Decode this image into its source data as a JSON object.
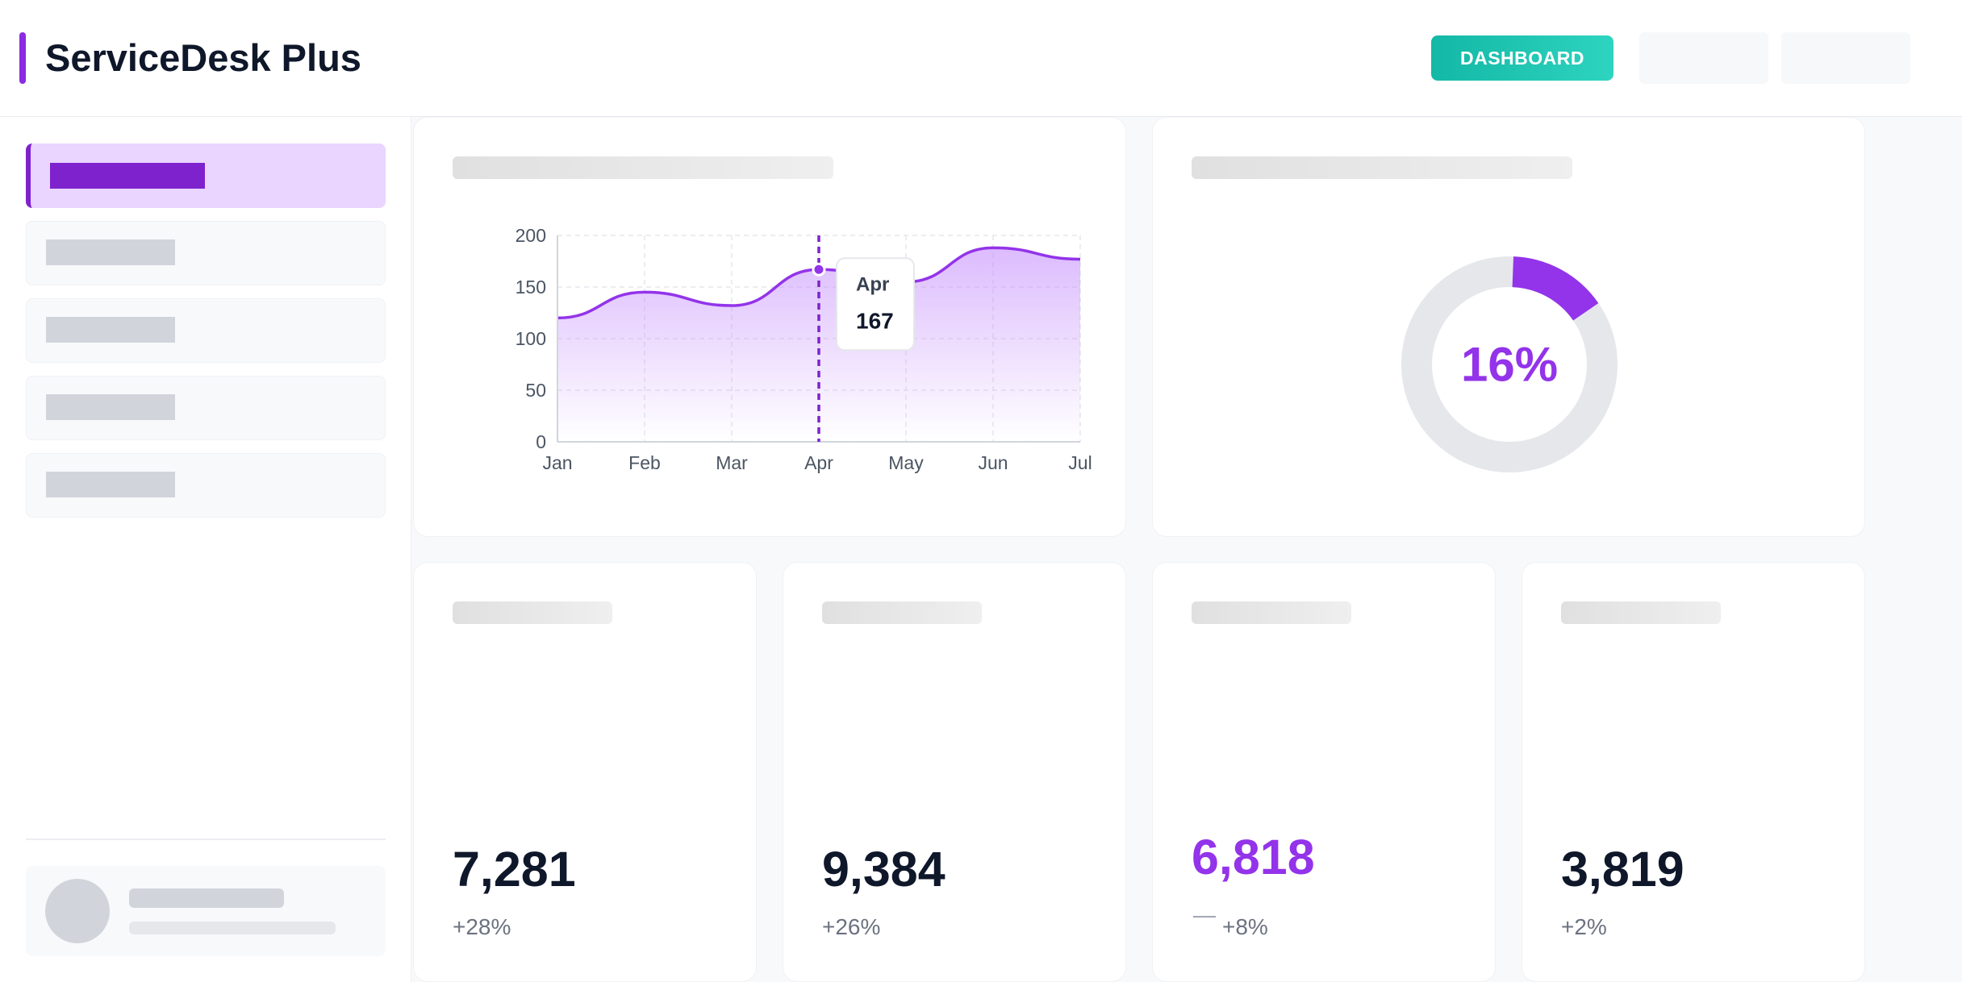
{
  "header": {
    "app_title": "ServiceDesk Plus",
    "dashboard_label": "DASHBOARD"
  },
  "colors": {
    "accent": "#9333ea",
    "accent_dark": "#7e22ce",
    "teal": "#14b8a6",
    "track": "#e5e7eb"
  },
  "chart_data": {
    "type": "area",
    "categories": [
      "Jan",
      "Feb",
      "Mar",
      "Apr",
      "May",
      "Jun",
      "Jul"
    ],
    "x": [
      "Jan",
      "Feb",
      "Mar",
      "Apr",
      "May",
      "Jun",
      "Jul"
    ],
    "series": [
      {
        "values": [
          120,
          145,
          132,
          167,
          155,
          188,
          177
        ]
      }
    ],
    "y_ticks": [
      0,
      50,
      100,
      150,
      200
    ],
    "ylim": [
      0,
      200
    ],
    "grid": true,
    "tooltip": {
      "label": "Apr",
      "value": "167"
    }
  },
  "donut": {
    "percent": 16,
    "label": "16%"
  },
  "stats": [
    {
      "value": "7,281",
      "change": "+28%"
    },
    {
      "value": "9,384",
      "change": "+26%"
    },
    {
      "value": "6,818",
      "change": "+8%",
      "mark": "—"
    },
    {
      "value": "3,819",
      "change": "+2%"
    }
  ]
}
